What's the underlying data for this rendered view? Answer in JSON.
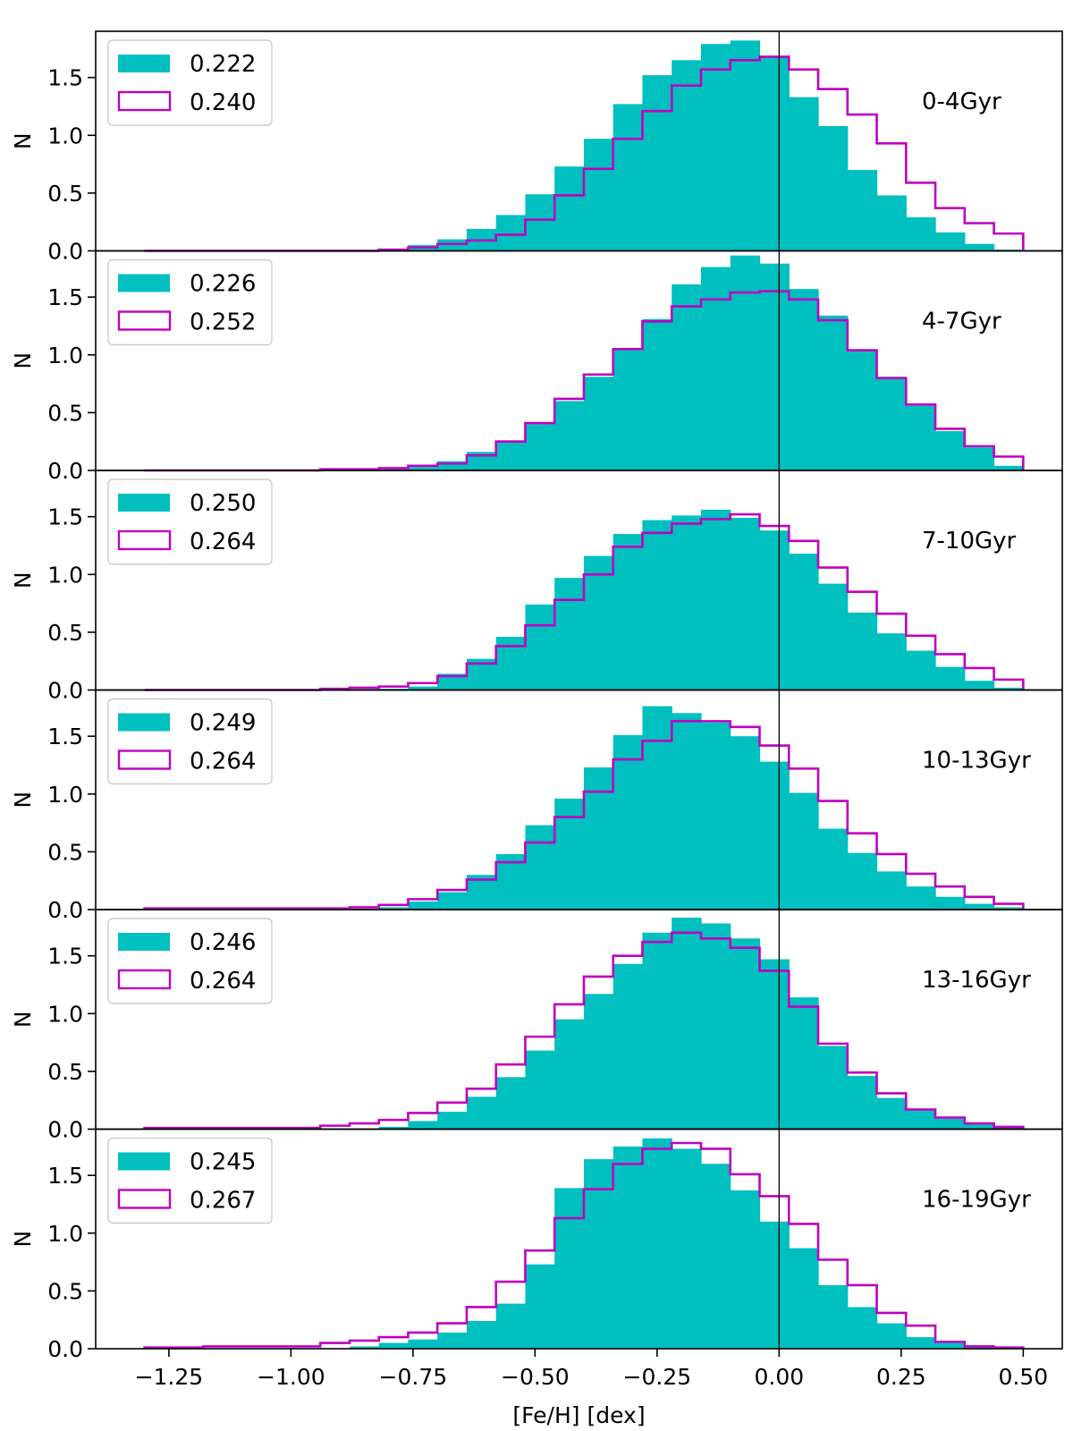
{
  "chart_data": {
    "type": "histogram",
    "xlabel": "[Fe/H] [dex]",
    "ylabel": "N",
    "xlim": [
      -1.4,
      0.58
    ],
    "ylim": [
      0,
      1.9
    ],
    "x_ticks": [
      -1.25,
      -1.0,
      -0.75,
      -0.5,
      -0.25,
      0.0,
      0.25,
      0.5
    ],
    "x_tick_labels": [
      "−1.25",
      "−1.00",
      "−0.75",
      "−0.50",
      "−0.25",
      "0.00",
      "0.25",
      "0.50"
    ],
    "y_ticks": [
      0.0,
      0.5,
      1.0,
      1.5
    ],
    "y_tick_labels": [
      "0.0",
      "0.5",
      "1.0",
      "1.5"
    ],
    "bin_edges": [
      -1.3,
      -1.24,
      -1.18,
      -1.12,
      -1.06,
      -1.0,
      -0.94,
      -0.88,
      -0.82,
      -0.76,
      -0.7,
      -0.64,
      -0.58,
      -0.52,
      -0.46,
      -0.4,
      -0.34,
      -0.28,
      -0.22,
      -0.16,
      -0.1,
      -0.04,
      0.02,
      0.08,
      0.14,
      0.2,
      0.26,
      0.32,
      0.38,
      0.44,
      0.5
    ],
    "vline_x": 0.0,
    "colors": {
      "filled": "#00bfbf",
      "step": "#bf00bf",
      "axis": "#000000"
    },
    "panels": [
      {
        "age_label": "0-4Gyr",
        "filled": {
          "label": "0.222",
          "values": [
            0,
            0,
            0,
            0,
            0,
            0,
            0,
            0,
            0.02,
            0.05,
            0.1,
            0.19,
            0.31,
            0.49,
            0.73,
            0.97,
            1.27,
            1.52,
            1.65,
            1.79,
            1.82,
            1.68,
            1.33,
            1.08,
            0.7,
            0.48,
            0.29,
            0.16,
            0.06,
            0.01
          ]
        },
        "step": {
          "label": "0.240",
          "values": [
            0,
            0,
            0,
            0,
            0,
            0,
            0,
            0,
            0.01,
            0.03,
            0.06,
            0.09,
            0.14,
            0.27,
            0.48,
            0.71,
            0.97,
            1.21,
            1.43,
            1.57,
            1.65,
            1.68,
            1.57,
            1.4,
            1.18,
            0.93,
            0.59,
            0.37,
            0.24,
            0.15
          ]
        }
      },
      {
        "age_label": "4-7Gyr",
        "filled": {
          "label": "0.226",
          "values": [
            0,
            0,
            0,
            0,
            0,
            0,
            0,
            0,
            0.01,
            0.03,
            0.08,
            0.16,
            0.26,
            0.4,
            0.6,
            0.81,
            1.04,
            1.31,
            1.61,
            1.76,
            1.86,
            1.79,
            1.57,
            1.34,
            1.05,
            0.81,
            0.56,
            0.34,
            0.2,
            0.04
          ]
        },
        "step": {
          "label": "0.252",
          "values": [
            0,
            0,
            0,
            0,
            0,
            0,
            0.01,
            0.01,
            0.02,
            0.04,
            0.06,
            0.13,
            0.25,
            0.41,
            0.62,
            0.83,
            1.05,
            1.29,
            1.42,
            1.48,
            1.54,
            1.55,
            1.48,
            1.3,
            1.04,
            0.8,
            0.57,
            0.36,
            0.21,
            0.12
          ]
        }
      },
      {
        "age_label": "7-10Gyr",
        "filled": {
          "label": "0.250",
          "values": [
            0,
            0,
            0,
            0,
            0,
            0,
            0,
            0,
            0.01,
            0.03,
            0.14,
            0.27,
            0.46,
            0.74,
            0.97,
            1.16,
            1.35,
            1.47,
            1.51,
            1.56,
            1.49,
            1.38,
            1.18,
            0.92,
            0.67,
            0.49,
            0.34,
            0.2,
            0.08,
            0.02
          ]
        },
        "step": {
          "label": "0.264",
          "values": [
            0,
            0,
            0,
            0,
            0,
            0,
            0.01,
            0.02,
            0.03,
            0.06,
            0.12,
            0.23,
            0.38,
            0.56,
            0.78,
            1.0,
            1.24,
            1.36,
            1.44,
            1.48,
            1.52,
            1.42,
            1.29,
            1.06,
            0.85,
            0.66,
            0.47,
            0.31,
            0.19,
            0.09
          ]
        }
      },
      {
        "age_label": "10-13Gyr",
        "filled": {
          "label": "0.249",
          "values": [
            0,
            0,
            0,
            0,
            0,
            0,
            0,
            0,
            0.02,
            0.07,
            0.15,
            0.3,
            0.48,
            0.73,
            0.96,
            1.23,
            1.51,
            1.76,
            1.7,
            1.62,
            1.5,
            1.28,
            1.01,
            0.7,
            0.49,
            0.33,
            0.2,
            0.11,
            0.05,
            0.02
          ]
        },
        "step": {
          "label": "0.264",
          "values": [
            0.01,
            0.01,
            0.01,
            0.01,
            0.01,
            0.01,
            0.01,
            0.02,
            0.04,
            0.09,
            0.17,
            0.26,
            0.41,
            0.58,
            0.8,
            1.02,
            1.3,
            1.46,
            1.63,
            1.63,
            1.58,
            1.42,
            1.22,
            0.94,
            0.66,
            0.48,
            0.31,
            0.2,
            0.11,
            0.05
          ]
        }
      },
      {
        "age_label": "13-16Gyr",
        "filled": {
          "label": "0.246",
          "values": [
            0,
            0,
            0,
            0,
            0,
            0,
            0,
            0,
            0.02,
            0.07,
            0.15,
            0.28,
            0.45,
            0.68,
            0.95,
            1.17,
            1.43,
            1.7,
            1.83,
            1.78,
            1.65,
            1.47,
            1.14,
            0.72,
            0.46,
            0.27,
            0.16,
            0.09,
            0.05,
            0.02
          ]
        },
        "step": {
          "label": "0.264",
          "values": [
            0.01,
            0.01,
            0.01,
            0.01,
            0.01,
            0.01,
            0.03,
            0.05,
            0.08,
            0.14,
            0.23,
            0.35,
            0.56,
            0.8,
            1.08,
            1.32,
            1.5,
            1.62,
            1.7,
            1.65,
            1.57,
            1.37,
            1.06,
            0.74,
            0.49,
            0.31,
            0.17,
            0.1,
            0.05,
            0.02
          ]
        }
      },
      {
        "age_label": "16-19Gyr",
        "filled": {
          "label": "0.245",
          "values": [
            0,
            0,
            0,
            0,
            0,
            0,
            0,
            0.02,
            0.05,
            0.08,
            0.14,
            0.24,
            0.39,
            0.73,
            1.39,
            1.64,
            1.75,
            1.82,
            1.73,
            1.6,
            1.37,
            1.1,
            0.87,
            0.55,
            0.36,
            0.22,
            0.1,
            0.05,
            0.03,
            0.01
          ]
        },
        "step": {
          "label": "0.267",
          "values": [
            0.01,
            0.01,
            0.02,
            0.02,
            0.02,
            0.02,
            0.05,
            0.07,
            0.1,
            0.14,
            0.22,
            0.36,
            0.58,
            0.85,
            1.13,
            1.38,
            1.6,
            1.73,
            1.78,
            1.73,
            1.51,
            1.32,
            1.08,
            0.77,
            0.55,
            0.31,
            0.2,
            0.06,
            0.02,
            0.01
          ]
        }
      }
    ]
  }
}
